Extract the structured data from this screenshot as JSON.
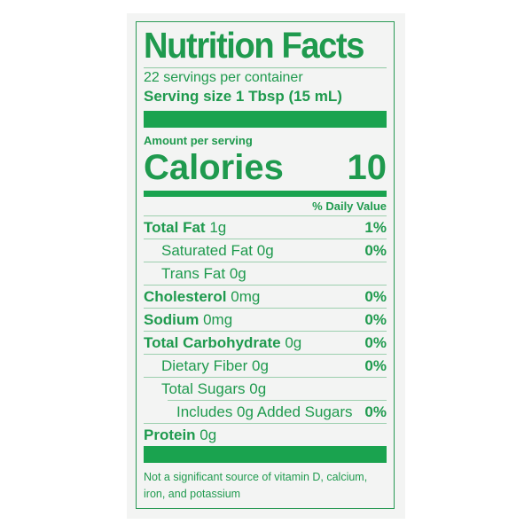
{
  "title": "Nutrition Facts",
  "servings": "22 servings per container",
  "serving_size": "Serving size 1 Tbsp (15 mL)",
  "amount_per_serving": "Amount per serving",
  "calories": {
    "label": "Calories",
    "value": "10"
  },
  "daily_value_header": "% Daily Value",
  "rows": [
    {
      "name": "Total Fat",
      "amount": "1g",
      "dv": "1%",
      "bold": true,
      "indent": 0
    },
    {
      "name": "Saturated Fat",
      "amount": "0g",
      "dv": "0%",
      "bold": false,
      "indent": 1
    },
    {
      "name": "Trans Fat",
      "amount": "0g",
      "dv": "",
      "bold": false,
      "indent": 1
    },
    {
      "name": "Cholesterol",
      "amount": "0mg",
      "dv": "0%",
      "bold": true,
      "indent": 0
    },
    {
      "name": "Sodium",
      "amount": "0mg",
      "dv": "0%",
      "bold": true,
      "indent": 0
    },
    {
      "name": "Total Carbohydrate",
      "amount": "0g",
      "dv": "0%",
      "bold": true,
      "indent": 0
    },
    {
      "name": "Dietary Fiber",
      "amount": "0g",
      "dv": "0%",
      "bold": false,
      "indent": 1
    },
    {
      "name": "Total Sugars",
      "amount": "0g",
      "dv": "",
      "bold": false,
      "indent": 1
    },
    {
      "name": "Includes 0g Added Sugars",
      "amount": "",
      "dv": "0%",
      "bold": false,
      "indent": 2
    },
    {
      "name": "Protein",
      "amount": "0g",
      "dv": "",
      "bold": true,
      "indent": 0
    }
  ],
  "footnote": "Not a significant source of vitamin D, calcium, iron, and potassium",
  "colors": {
    "ink": "#1f9a4e",
    "bar": "#1aa34f",
    "background": "#f3f4f3"
  }
}
